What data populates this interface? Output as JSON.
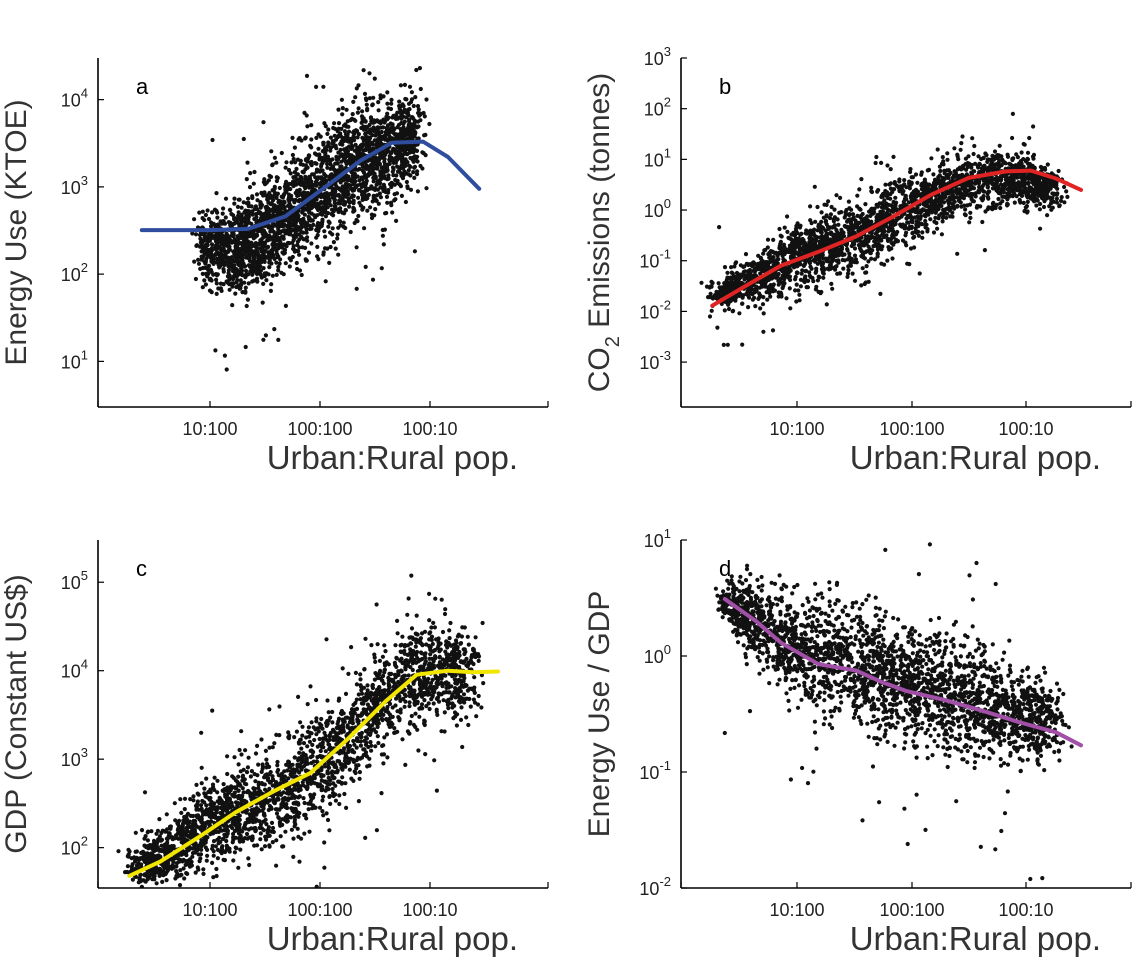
{
  "chart_data": [
    {
      "type": "scatter",
      "panel_label": "a",
      "xlabel": "Urban:Rural pop.",
      "ylabel": "Energy Use (KTOE)",
      "xscale": "log-ratio",
      "yscale": "log",
      "xticks": [
        "10:100",
        "100:100",
        "100:10"
      ],
      "yticks": [
        {
          "value": 10,
          "base": "10",
          "exp": "1"
        },
        {
          "value": 100,
          "base": "10",
          "exp": "2"
        },
        {
          "value": 1000,
          "base": "10",
          "exp": "3"
        },
        {
          "value": 10000,
          "base": "10",
          "exp": "4"
        }
      ],
      "xlim_log10_ratio": [
        -1.8,
        1.8
      ],
      "ylim": [
        3.0,
        30000
      ],
      "fit_color": "#2f4d9e",
      "cloud_log10_ratio_x": [
        -0.95,
        -0.7,
        -0.4,
        -0.1,
        0.2,
        0.5,
        0.75
      ],
      "cloud_center": [
        200,
        180,
        350,
        800,
        1500,
        2500,
        3500
      ],
      "cloud_spread_decades": [
        0.35,
        0.45,
        0.55,
        0.6,
        0.6,
        0.55,
        0.5
      ],
      "fit_log10_ratio_x": [
        -1.45,
        -1.2,
        -0.9,
        -0.6,
        -0.3,
        0.0,
        0.3,
        0.55,
        0.8,
        1.0,
        1.25
      ],
      "fit_y": [
        320,
        320,
        320,
        330,
        460,
        950,
        2000,
        3200,
        3300,
        2200,
        950
      ]
    },
    {
      "type": "scatter",
      "panel_label": "b",
      "xlabel": "Urban:Rural pop.",
      "ylabel": "CO",
      "ylabel_sub": "2",
      "ylabel_rest": " Emissions (tonnes)",
      "xscale": "log-ratio",
      "yscale": "log",
      "xticks": [
        "10:100",
        "100:100",
        "100:10"
      ],
      "yticks": [
        {
          "value": 0.001,
          "base": "10",
          "exp": "-3"
        },
        {
          "value": 0.01,
          "base": "10",
          "exp": "-2"
        },
        {
          "value": 0.1,
          "base": "10",
          "exp": "-1"
        },
        {
          "value": 1,
          "base": "10",
          "exp": "0"
        },
        {
          "value": 10,
          "base": "10",
          "exp": "1"
        },
        {
          "value": 100,
          "base": "10",
          "exp": "2"
        },
        {
          "value": 1000,
          "base": "10",
          "exp": "3"
        }
      ],
      "xlim_log10_ratio": [
        -1.8,
        1.8
      ],
      "ylim": [
        0.00013,
        1000
      ],
      "fit_color": "#e02424",
      "cloud_log10_ratio_x": [
        -1.5,
        -1.2,
        -0.9,
        -0.6,
        -0.3,
        0.0,
        0.3,
        0.6,
        0.9,
        1.2
      ],
      "cloud_center": [
        0.02,
        0.05,
        0.1,
        0.2,
        0.4,
        1.0,
        2.5,
        4.0,
        4.0,
        3.0
      ],
      "cloud_spread_decades": [
        0.3,
        0.45,
        0.55,
        0.6,
        0.65,
        0.65,
        0.55,
        0.5,
        0.45,
        0.35
      ],
      "fit_log10_ratio_x": [
        -1.55,
        -1.3,
        -1.0,
        -0.7,
        -0.4,
        -0.1,
        0.2,
        0.5,
        0.8,
        1.0,
        1.2,
        1.4
      ],
      "fit_y": [
        0.013,
        0.03,
        0.08,
        0.15,
        0.3,
        0.75,
        2.0,
        4.3,
        5.8,
        6.0,
        4.2,
        2.5
      ]
    },
    {
      "type": "scatter",
      "panel_label": "c",
      "xlabel": "Urban:Rural pop.",
      "ylabel": "GDP (Constant US$)",
      "xscale": "log-ratio",
      "yscale": "log",
      "xticks": [
        "10:100",
        "100:100",
        "100:10"
      ],
      "yticks": [
        {
          "value": 100,
          "base": "10",
          "exp": "2"
        },
        {
          "value": 1000,
          "base": "10",
          "exp": "3"
        },
        {
          "value": 10000,
          "base": "10",
          "exp": "4"
        },
        {
          "value": 100000,
          "base": "10",
          "exp": "5"
        }
      ],
      "xlim_log10_ratio": [
        -1.8,
        1.8
      ],
      "ylim": [
        35,
        300000
      ],
      "fit_color": "#f2e500",
      "cloud_log10_ratio_x": [
        -1.5,
        -1.2,
        -0.9,
        -0.6,
        -0.3,
        0.0,
        0.3,
        0.6,
        0.9,
        1.2
      ],
      "cloud_center": [
        55,
        100,
        180,
        280,
        450,
        900,
        2500,
        7000,
        10000,
        10000
      ],
      "cloud_spread_decades": [
        0.25,
        0.35,
        0.4,
        0.45,
        0.5,
        0.55,
        0.55,
        0.5,
        0.5,
        0.45
      ],
      "fit_log10_ratio_x": [
        -1.55,
        -1.3,
        -1.0,
        -0.7,
        -0.4,
        -0.1,
        0.2,
        0.5,
        0.75,
        1.0,
        1.2,
        1.4
      ],
      "fit_y": [
        48,
        70,
        130,
        250,
        430,
        700,
        1700,
        4500,
        9000,
        10000,
        9600,
        9800
      ]
    },
    {
      "type": "scatter",
      "panel_label": "d",
      "xlabel": "Urban:Rural pop.",
      "ylabel": "Energy Use / GDP",
      "xscale": "log-ratio",
      "yscale": "log",
      "xticks": [
        "10:100",
        "100:100",
        "100:10"
      ],
      "yticks": [
        {
          "value": 0.01,
          "base": "10",
          "exp": "-2"
        },
        {
          "value": 0.1,
          "base": "10",
          "exp": "-1"
        },
        {
          "value": 1,
          "base": "10",
          "exp": "0"
        },
        {
          "value": 10,
          "base": "10",
          "exp": "1"
        }
      ],
      "xlim_log10_ratio": [
        -1.8,
        1.8
      ],
      "ylim": [
        0.01,
        10
      ],
      "fit_color": "#a24fa8",
      "cloud_log10_ratio_x": [
        -1.45,
        -1.2,
        -0.9,
        -0.6,
        -0.3,
        0.0,
        0.3,
        0.6,
        0.9,
        1.2
      ],
      "cloud_center": [
        3.0,
        2.0,
        1.2,
        1.0,
        0.8,
        0.6,
        0.5,
        0.4,
        0.3,
        0.25
      ],
      "cloud_spread_decades": [
        0.15,
        0.3,
        0.4,
        0.45,
        0.45,
        0.45,
        0.45,
        0.4,
        0.35,
        0.3
      ],
      "fit_log10_ratio_x": [
        -1.45,
        -1.2,
        -1.0,
        -0.7,
        -0.4,
        -0.2,
        0.0,
        0.3,
        0.6,
        0.9,
        1.2,
        1.4
      ],
      "fit_y": [
        3.1,
        2.0,
        1.3,
        0.85,
        0.75,
        0.6,
        0.5,
        0.42,
        0.34,
        0.27,
        0.22,
        0.17
      ]
    }
  ]
}
